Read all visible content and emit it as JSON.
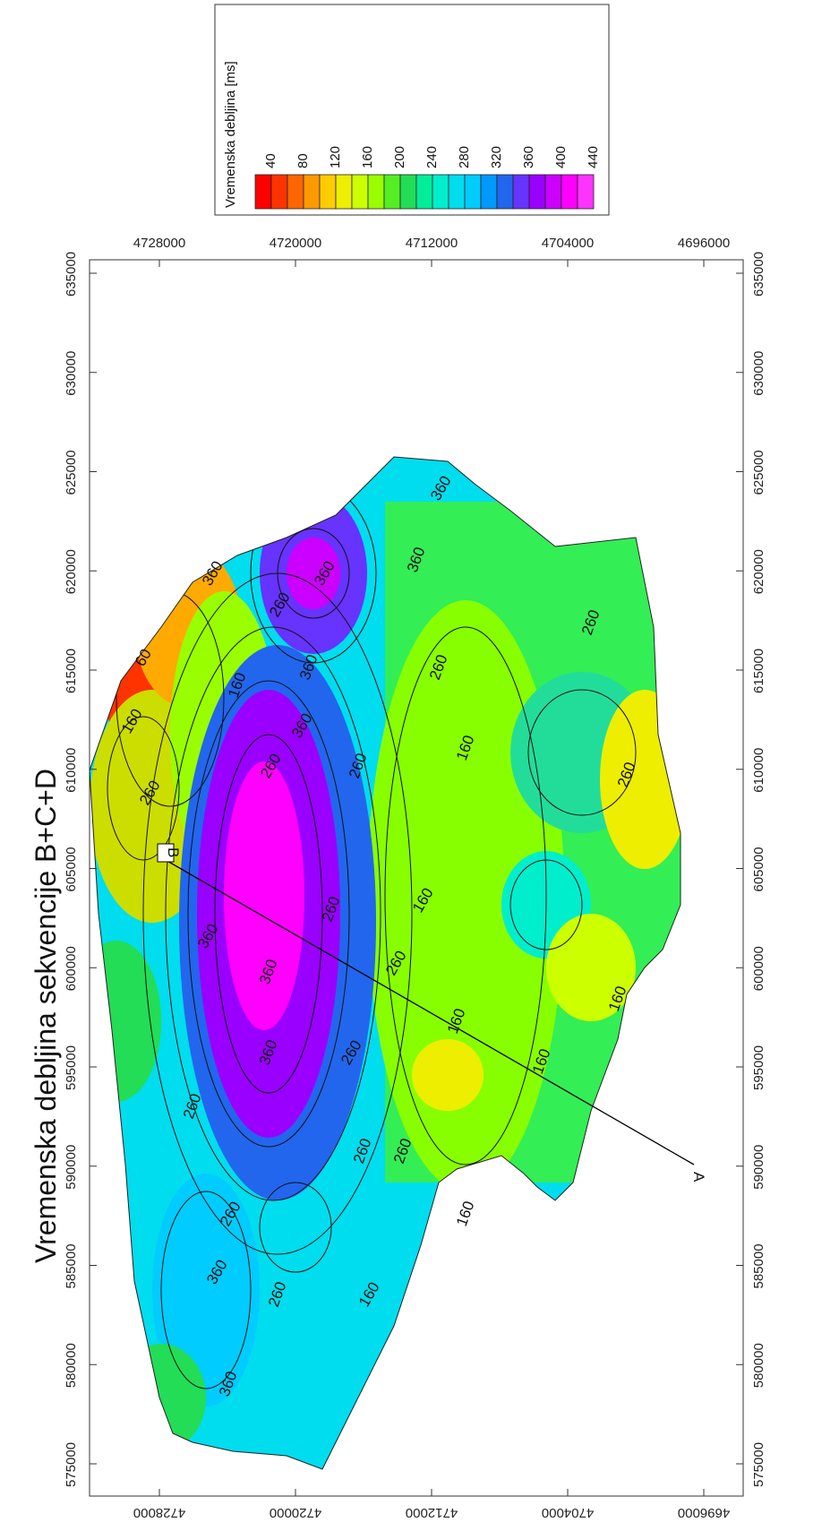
{
  "title": "Vremenska debljina sekvencije B+C+D",
  "legend": {
    "title": "Vremenska debljina [ms]",
    "tick_labels": [
      "40",
      "80",
      "120",
      "160",
      "200",
      "240",
      "280",
      "320",
      "360",
      "400",
      "440"
    ],
    "colors": [
      "#ff0000",
      "#ff3300",
      "#ff6600",
      "#ff9900",
      "#ffcc00",
      "#eeee00",
      "#ccff00",
      "#99ff00",
      "#55ee22",
      "#22dd55",
      "#00ee99",
      "#00eecc",
      "#00ddee",
      "#00ccff",
      "#0099ff",
      "#2266ee",
      "#6633ff",
      "#9900ff",
      "#cc00ff",
      "#ff00ff",
      "#ff33ff"
    ]
  },
  "axes": {
    "easting_labels": [
      "575000",
      "580000",
      "585000",
      "590000",
      "595000",
      "600000",
      "605000",
      "610000",
      "615000",
      "620000",
      "625000",
      "630000",
      "635000"
    ],
    "northing_labels": [
      "4728000",
      "4720000",
      "4712000",
      "4704000",
      "4696000"
    ]
  },
  "contour_labels": [
    "60",
    "160",
    "260",
    "360",
    "260",
    "160",
    "260",
    "360",
    "360",
    "260",
    "160",
    "360",
    "360",
    "260",
    "160",
    "260",
    "360",
    "260",
    "360",
    "160",
    "260",
    "160",
    "260",
    "260",
    "360",
    "260",
    "160",
    "260",
    "260",
    "160",
    "260",
    "360",
    "160",
    "360",
    "260",
    "360"
  ],
  "profile": {
    "start_label": "A",
    "end_label": "B"
  }
}
